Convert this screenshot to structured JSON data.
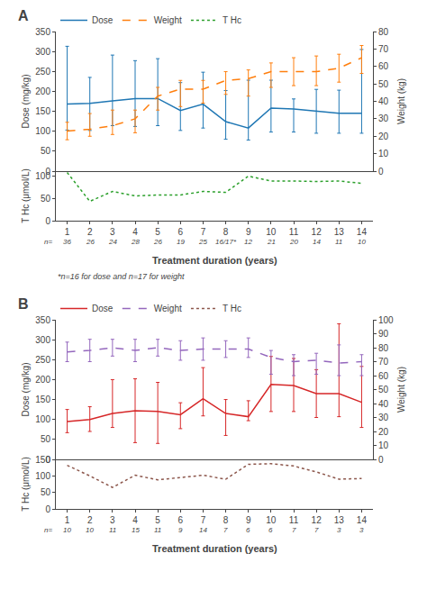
{
  "chart_data": [
    {
      "type": "line",
      "title": "A",
      "x": [
        1,
        2,
        3,
        4,
        5,
        6,
        7,
        8,
        9,
        10,
        11,
        12,
        13,
        14
      ],
      "xlim": [
        0.5,
        14.5
      ],
      "ylabel": "Dose (mg/kg)",
      "ylim": [
        0,
        350
      ],
      "yticks": [
        0,
        50,
        100,
        150,
        200,
        250,
        300,
        350
      ],
      "y2label": "Weight (kg)",
      "y2lim": [
        0,
        80
      ],
      "y2ticks": [
        0,
        10,
        20,
        30,
        40,
        50,
        60,
        70,
        80
      ],
      "tick_labels": "y",
      "grid": false,
      "legend": "top",
      "series": [
        {
          "name": "Dose",
          "line_style": "solid",
          "values": [
            168,
            170,
            176,
            182,
            182,
            152,
            168,
            124,
            108,
            158,
            156,
            150,
            145,
            145
          ],
          "error_low": [
            65,
            68,
            62,
            70,
            68,
            50,
            60,
            44,
            30,
            60,
            58,
            55,
            50,
            50
          ],
          "error_high": [
            145,
            65,
            115,
            95,
            100,
            70,
            80,
            78,
            120,
            70,
            25,
            55,
            58,
            160
          ]
        },
        {
          "name": "Weight",
          "axis": "y2",
          "line_style": "dash",
          "values": [
            23,
            24,
            26,
            30,
            43,
            47,
            47,
            52,
            53,
            57,
            57,
            57,
            59,
            65
          ],
          "error_low": [
            5,
            4,
            5,
            8,
            8,
            10,
            8,
            8,
            10,
            9,
            8,
            8,
            8,
            9
          ],
          "error_high": [
            5,
            9,
            9,
            5,
            5,
            5,
            5,
            5,
            5,
            5,
            8,
            9,
            8,
            7
          ]
        }
      ]
    },
    {
      "type": "line",
      "x": [
        1,
        2,
        3,
        4,
        5,
        6,
        7,
        8,
        9,
        10,
        11,
        12,
        13,
        14
      ],
      "xlim": [
        0.5,
        14.5
      ],
      "xticks": [
        1,
        2,
        3,
        4,
        5,
        6,
        7,
        8,
        9,
        10,
        11,
        12,
        13,
        14
      ],
      "xlabel": "Treatment duration (years)",
      "ylabel": "T Hc (μmol/L)",
      "ylim": [
        0,
        110
      ],
      "yticks": [
        0,
        50,
        100
      ],
      "grid": false,
      "series": [
        {
          "name": "T Hc",
          "line_style": "dot",
          "values": [
            107,
            43,
            65,
            55,
            57,
            57,
            65,
            63,
            99,
            88,
            88,
            87,
            88,
            83
          ]
        }
      ],
      "row_label": "n=",
      "row_labels": [
        "36",
        "26",
        "24",
        "28",
        "26",
        "19",
        "25",
        "16/17*",
        "12",
        "21",
        "20",
        "14",
        "11",
        "10"
      ],
      "annotations": [
        "*n=16 for dose and n=17 for weight"
      ]
    },
    {
      "type": "line",
      "title": "B",
      "x": [
        1,
        2,
        3,
        4,
        5,
        6,
        7,
        8,
        9,
        10,
        11,
        12,
        13,
        14
      ],
      "xlim": [
        0.5,
        14.5
      ],
      "ylabel": "Dose (mg/kg)",
      "ylim": [
        0,
        350
      ],
      "yticks": [
        0,
        50,
        100,
        150,
        200,
        250,
        300,
        350
      ],
      "y2label": "Weight (kg)",
      "y2lim": [
        0,
        100
      ],
      "y2ticks": [
        0,
        10,
        20,
        30,
        40,
        50,
        60,
        70,
        80,
        90,
        100
      ],
      "tick_labels": "y",
      "grid": false,
      "legend": "top",
      "series": [
        {
          "name": "Dose",
          "line_style": "solid",
          "values": [
            95,
            100,
            115,
            122,
            120,
            112,
            152,
            115,
            107,
            188,
            185,
            165,
            165,
            143
          ],
          "error_low": [
            28,
            30,
            35,
            80,
            80,
            35,
            43,
            55,
            10,
            68,
            65,
            60,
            58,
            63
          ],
          "error_high": [
            30,
            32,
            85,
            80,
            73,
            30,
            78,
            35,
            40,
            70,
            68,
            60,
            175,
            90
          ]
        },
        {
          "name": "Weight",
          "axis": "y2",
          "line_style": "dash",
          "values": [
            77,
            78,
            80,
            78,
            80,
            78,
            79,
            79,
            79,
            73,
            70,
            71,
            69,
            70
          ],
          "error_low": [
            7,
            8,
            6,
            8,
            6,
            7,
            8,
            6,
            6,
            12,
            10,
            10,
            9,
            10
          ],
          "error_high": [
            7,
            8,
            6,
            8,
            6,
            7,
            8,
            6,
            8,
            5,
            5,
            5,
            13,
            5
          ]
        }
      ]
    },
    {
      "type": "line",
      "x": [
        1,
        2,
        3,
        4,
        5,
        6,
        7,
        8,
        9,
        10,
        11,
        12,
        13,
        14
      ],
      "xlim": [
        0.5,
        14.5
      ],
      "xticks": [
        1,
        2,
        3,
        4,
        5,
        6,
        7,
        8,
        9,
        10,
        11,
        12,
        13,
        14
      ],
      "xlabel": "Treatment duration (years)",
      "ylabel": "T Hc (μmol/L)",
      "ylim": [
        0,
        150
      ],
      "yticks": [
        0,
        50,
        100,
        150
      ],
      "grid": false,
      "series": [
        {
          "name": "T Hc",
          "line_style": "dot",
          "values": [
            132,
            100,
            65,
            102,
            88,
            95,
            102,
            90,
            135,
            137,
            130,
            112,
            90,
            92
          ]
        }
      ],
      "row_label": "n=",
      "row_labels": [
        "10",
        "10",
        "11",
        "15",
        "11",
        "9",
        "14",
        "7",
        "6",
        "6",
        "7",
        "7",
        "3",
        "3"
      ]
    }
  ]
}
